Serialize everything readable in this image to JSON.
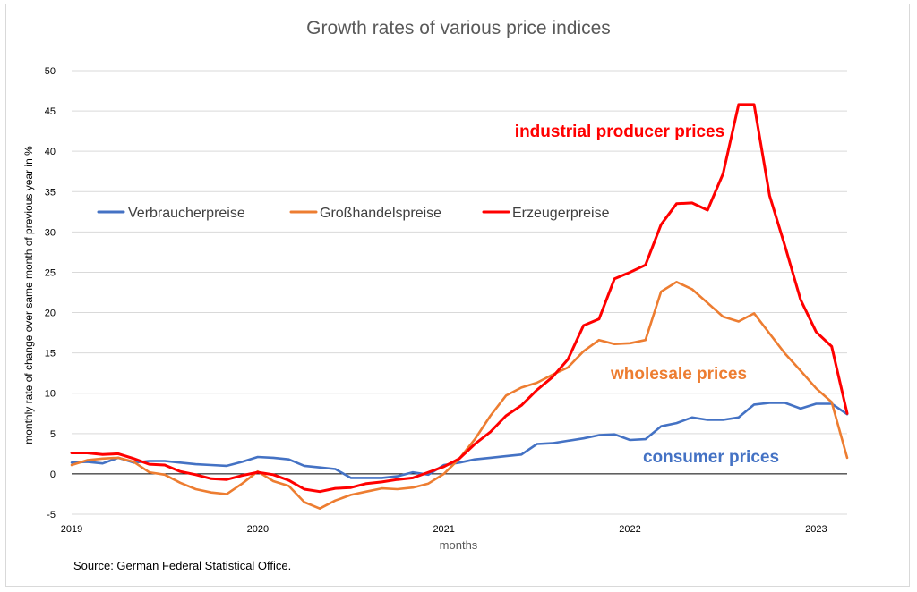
{
  "chart_data": {
    "type": "line",
    "title": "Growth rates of various price indices",
    "xlabel": "months",
    "ylabel": "monthly rate of change over same month of previous year in %",
    "ylim": [
      -5,
      50
    ],
    "yticks": [
      -5,
      0,
      5,
      10,
      15,
      20,
      25,
      30,
      35,
      40,
      45,
      50
    ],
    "xlim": [
      0,
      50
    ],
    "xticks": [
      {
        "label": "2019",
        "x": 0
      },
      {
        "label": "2020",
        "x": 12
      },
      {
        "label": "2021",
        "x": 24
      },
      {
        "label": "2022",
        "x": 36
      },
      {
        "label": "2023",
        "x": 48
      }
    ],
    "grid": true,
    "legend_position": "top-left",
    "series": [
      {
        "name": "Verbraucherpreise",
        "color": "#4472C4",
        "annotation": "consumer prices",
        "values": [
          1.4,
          1.5,
          1.3,
          2.0,
          1.4,
          1.6,
          1.6,
          1.4,
          1.2,
          1.1,
          1.0,
          1.5,
          2.1,
          2.0,
          1.8,
          1.0,
          0.8,
          0.6,
          -0.5,
          -0.5,
          -0.5,
          -0.3,
          0.2,
          -0.1,
          1.1,
          1.4,
          1.8,
          2.0,
          2.2,
          2.4,
          3.7,
          3.8,
          4.1,
          4.4,
          4.8,
          4.9,
          4.2,
          4.3,
          5.9,
          6.3,
          7.0,
          6.7,
          6.7,
          7.0,
          8.6,
          8.8,
          8.8,
          8.1,
          8.7,
          8.7,
          7.4
        ]
      },
      {
        "name": "Großhandelspreise",
        "color": "#ED7D31",
        "annotation": "wholesale prices",
        "values": [
          1.1,
          1.7,
          1.9,
          2.0,
          1.5,
          0.2,
          -0.1,
          -1.1,
          -1.9,
          -2.3,
          -2.5,
          -1.2,
          0.3,
          -0.9,
          -1.5,
          -3.5,
          -4.3,
          -3.3,
          -2.6,
          -2.2,
          -1.8,
          -1.9,
          -1.7,
          -1.2,
          0.0,
          1.9,
          4.3,
          7.2,
          9.7,
          10.7,
          11.3,
          12.3,
          13.2,
          15.2,
          16.6,
          16.1,
          16.2,
          16.6,
          22.6,
          23.8,
          22.9,
          21.2,
          19.5,
          18.9,
          19.9,
          17.4,
          14.9,
          12.8,
          10.6,
          8.9,
          2.0
        ]
      },
      {
        "name": "Erzeugerpreise",
        "color": "#FF0000",
        "annotation": "industrial producer prices",
        "values": [
          2.6,
          2.6,
          2.4,
          2.5,
          1.9,
          1.2,
          1.1,
          0.3,
          -0.1,
          -0.6,
          -0.7,
          -0.2,
          0.2,
          -0.1,
          -0.8,
          -1.9,
          -2.2,
          -1.8,
          -1.7,
          -1.2,
          -1.0,
          -0.7,
          -0.5,
          0.2,
          0.9,
          1.9,
          3.7,
          5.2,
          7.2,
          8.5,
          10.4,
          12.0,
          14.2,
          18.4,
          19.2,
          24.2,
          25.0,
          25.9,
          30.9,
          33.5,
          33.6,
          32.7,
          37.2,
          45.8,
          45.8,
          34.5,
          28.2,
          21.6,
          17.6,
          15.8,
          7.5
        ]
      }
    ],
    "source": "Source: German Federal Statistical Office."
  }
}
